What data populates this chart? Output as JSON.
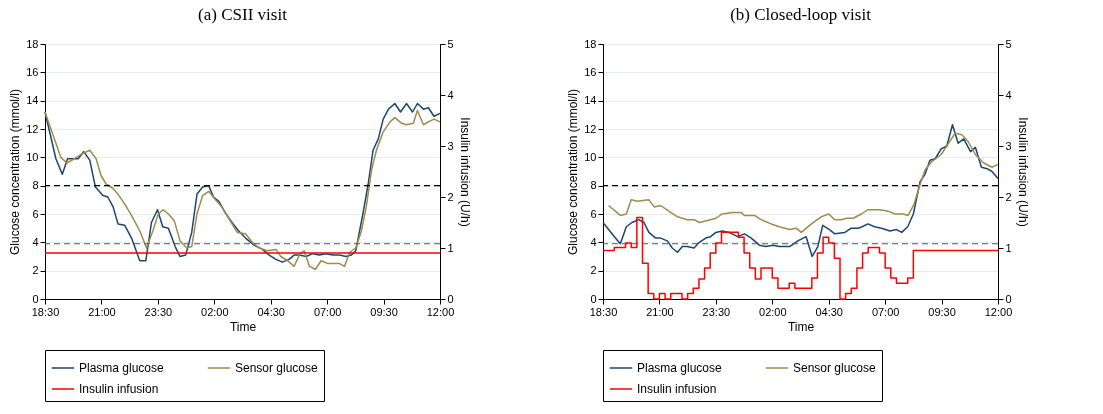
{
  "chart_data": [
    {
      "type": "line",
      "title": "(a) CSII visit",
      "xlabel": "Time",
      "ylabel": "Glucose concentration (mmol/l)",
      "y2label": "Insulin infusion (U/h)",
      "xlim": [
        "--01-01T18:30",
        "--01-02T12:00"
      ],
      "xticks": [
        {
          "value": "--01-01T18:30",
          "label": "18:30"
        },
        {
          "value": "--01-01T21:00",
          "label": "21:00"
        },
        {
          "value": "--01-01T23:30",
          "label": "23:30"
        },
        {
          "value": "--01-02T02:00",
          "label": "02:00"
        },
        {
          "value": "--01-02T04:30",
          "label": "04:30"
        },
        {
          "value": "--01-02T07:00",
          "label": "07:00"
        },
        {
          "value": "--01-02T09:30",
          "label": "09:30"
        },
        {
          "value": "--01-02T12:00",
          "label": "12:00"
        }
      ],
      "ylim": [
        0,
        18
      ],
      "yticks": [
        0,
        2,
        4,
        6,
        8,
        10,
        12,
        14,
        16,
        18
      ],
      "y2lim": [
        0,
        5
      ],
      "y2ticks": [
        0,
        1,
        2,
        3,
        4,
        5
      ],
      "grid": "y",
      "legend": "bottom",
      "ref_lines": [
        {
          "axis": "y",
          "value": 8,
          "color": "#000000",
          "line_style": "dashed"
        },
        {
          "axis": "y",
          "value": 3.9,
          "color": "#555555",
          "line_style": "dashed"
        }
      ],
      "series": [
        {
          "name": "Plasma glucose",
          "color": "#1a476f",
          "x": [
            "--01-01T18:30",
            "--01-01T18:59",
            "--01-01T19:16",
            "--01-01T19:30",
            "--01-01T19:58",
            "--01-01T20:13",
            "--01-01T20:29",
            "--01-01T20:44",
            "--01-01T21:04",
            "--01-01T21:17",
            "--01-01T21:31",
            "--01-01T21:44",
            "--01-01T22:02",
            "--01-01T22:20",
            "--01-01T22:42",
            "--01-01T22:58",
            "--01-01T23:13",
            "--01-01T23:29",
            "--01-01T23:43",
            "--01-01T23:58",
            "--01-02T00:16",
            "--01-02T00:29",
            "--01-02T00:44",
            "--01-02T01:00",
            "--01-02T01:14",
            "--01-02T01:29",
            "--01-02T01:45",
            "--01-02T01:58",
            "--01-02T02:12",
            "--01-02T02:29",
            "--01-02T02:47",
            "--01-02T03:05",
            "--01-02T03:23",
            "--01-02T03:46",
            "--01-02T04:08",
            "--01-02T04:26",
            "--01-02T04:44",
            "--01-02T05:01",
            "--01-02T05:19",
            "--01-02T05:32",
            "--01-02T05:46",
            "--01-02T06:04",
            "--01-02T06:22",
            "--01-02T06:39",
            "--01-02T06:57",
            "--01-02T07:15",
            "--01-02T07:33",
            "--01-02T07:50",
            "--01-02T08:04",
            "--01-02T08:16",
            "--01-02T08:35",
            "--01-02T08:49",
            "--01-02T09:02",
            "--01-02T09:16",
            "--01-02T09:29",
            "--01-02T09:43",
            "--01-02T10:00",
            "--01-02T10:15",
            "--01-02T10:31",
            "--01-02T10:47",
            "--01-02T11:00",
            "--01-02T11:16",
            "--01-02T11:29",
            "--01-02T11:44",
            "--01-02T12:00"
          ],
          "values": [
            13.2,
            9.9,
            8.8,
            9.9,
            9.9,
            10.4,
            9.8,
            7.9,
            7.3,
            7.2,
            6.5,
            5.3,
            5.2,
            4.3,
            2.7,
            2.7,
            5.4,
            6.3,
            5.1,
            5.0,
            3.7,
            3.0,
            3.1,
            4.7,
            7.4,
            7.9,
            8.0,
            7.2,
            6.9,
            6.1,
            5.4,
            4.8,
            4.3,
            3.8,
            3.5,
            3.1,
            2.8,
            2.6,
            2.8,
            3.1,
            3.1,
            3.0,
            3.2,
            3.1,
            3.2,
            3.1,
            3.1,
            3.0,
            3.1,
            3.4,
            6.0,
            8.1,
            10.5,
            11.3,
            12.7,
            13.4,
            13.8,
            13.2,
            13.8,
            13.2,
            13.8,
            13.4,
            13.5,
            12.9,
            13.1
          ]
        },
        {
          "name": "Sensor glucose",
          "color": "#a08a4c",
          "x": [
            "--01-01T18:30",
            "--01-01T18:55",
            "--01-01T19:12",
            "--01-01T19:28",
            "--01-01T19:48",
            "--01-01T20:05",
            "--01-01T20:29",
            "--01-01T20:46",
            "--01-01T20:59",
            "--01-01T21:13",
            "--01-01T21:31",
            "--01-01T21:44",
            "--01-01T22:02",
            "--01-01T22:20",
            "--01-01T22:42",
            "--01-01T23:00",
            "--01-01T23:18",
            "--01-01T23:31",
            "--01-01T23:44",
            "--01-01T23:58",
            "--01-02T00:14",
            "--01-02T00:29",
            "--01-02T00:47",
            "--01-02T01:00",
            "--01-02T01:14",
            "--01-02T01:29",
            "--01-02T01:45",
            "--01-02T02:03",
            "--01-02T02:20",
            "--01-02T02:38",
            "--01-02T03:01",
            "--01-02T03:23",
            "--01-02T03:41",
            "--01-02T03:59",
            "--01-02T04:21",
            "--01-02T04:44",
            "--01-02T04:57",
            "--01-02T05:15",
            "--01-02T05:32",
            "--01-02T05:48",
            "--01-02T05:59",
            "--01-02T06:13",
            "--01-02T06:29",
            "--01-02T06:44",
            "--01-02T07:02",
            "--01-02T07:20",
            "--01-02T07:33",
            "--01-02T07:46",
            "--01-02T08:00",
            "--01-02T08:16",
            "--01-02T08:31",
            "--01-02T08:44",
            "--01-02T08:58",
            "--01-02T09:11",
            "--01-02T09:29",
            "--01-02T09:47",
            "--01-02T10:00",
            "--01-02T10:18",
            "--01-02T10:31",
            "--01-02T10:49",
            "--01-02T11:00",
            "--01-02T11:16",
            "--01-02T11:29",
            "--01-02T11:44",
            "--01-02T12:00"
          ],
          "values": [
            13.2,
            11.3,
            10.0,
            9.6,
            9.9,
            10.2,
            10.5,
            9.9,
            8.7,
            8.1,
            7.8,
            7.4,
            6.7,
            5.9,
            4.8,
            3.6,
            4.9,
            6.0,
            6.3,
            6.0,
            5.5,
            4.1,
            3.6,
            3.7,
            6.0,
            7.3,
            7.6,
            7.0,
            6.5,
            5.7,
            4.7,
            4.6,
            4.0,
            3.6,
            3.4,
            3.5,
            3.0,
            2.7,
            2.3,
            3.2,
            3.4,
            2.3,
            2.1,
            2.7,
            2.5,
            2.5,
            2.5,
            2.3,
            3.3,
            3.6,
            4.8,
            6.5,
            9.1,
            10.5,
            11.8,
            12.5,
            12.8,
            12.4,
            12.3,
            12.4,
            13.3,
            12.3,
            12.5,
            12.7,
            12.5
          ]
        },
        {
          "name": "Insulin infusion",
          "color": "#ff0000",
          "type": "step",
          "axis": "y2",
          "x": [
            "--01-01T18:30",
            "--01-02T12:00"
          ],
          "values": [
            0.9,
            0.9
          ]
        }
      ]
    },
    {
      "type": "line",
      "title": "(b) Closed-loop visit",
      "xlabel": "Time",
      "ylabel": "Glucose concentration (mmol/l)",
      "y2label": "Insulin infusion (U/h)",
      "xlim": [
        "--01-01T18:30",
        "--01-02T12:00"
      ],
      "xticks": [
        {
          "value": "--01-01T18:30",
          "label": "18:30"
        },
        {
          "value": "--01-01T21:00",
          "label": "21:00"
        },
        {
          "value": "--01-01T23:30",
          "label": "23:30"
        },
        {
          "value": "--01-02T02:00",
          "label": "02:00"
        },
        {
          "value": "--01-02T04:30",
          "label": "04:30"
        },
        {
          "value": "--01-02T07:00",
          "label": "07:00"
        },
        {
          "value": "--01-02T09:30",
          "label": "09:30"
        },
        {
          "value": "--01-02T12:00",
          "label": "12:00"
        }
      ],
      "ylim": [
        0,
        18
      ],
      "yticks": [
        0,
        2,
        4,
        6,
        8,
        10,
        12,
        14,
        16,
        18
      ],
      "y2lim": [
        0,
        5
      ],
      "y2ticks": [
        0,
        1,
        2,
        3,
        4,
        5
      ],
      "grid": "y",
      "legend": "bottom",
      "ref_lines": [
        {
          "axis": "y",
          "value": 8,
          "color": "#000000",
          "line_style": "dashed"
        },
        {
          "axis": "y",
          "value": 3.9,
          "color": "#555555",
          "line_style": "dashed"
        }
      ],
      "series": [
        {
          "name": "Plasma glucose",
          "color": "#1a476f",
          "x": [
            "--01-01T18:30",
            "--01-01T19:03",
            "--01-01T19:16",
            "--01-01T19:32",
            "--01-01T19:47",
            "--01-01T20:05",
            "--01-01T20:19",
            "--01-01T20:32",
            "--01-01T20:50",
            "--01-01T21:03",
            "--01-01T21:21",
            "--01-01T21:34",
            "--01-01T21:48",
            "--01-01T22:01",
            "--01-01T22:14",
            "--01-01T22:32",
            "--01-01T22:46",
            "--01-01T23:03",
            "--01-01T23:16",
            "--01-01T23:30",
            "--01-01T23:47",
            "--01-02T00:05",
            "--01-02T00:28",
            "--01-02T00:46",
            "--01-02T01:04",
            "--01-02T01:26",
            "--01-02T01:43",
            "--01-02T02:01",
            "--01-02T02:19",
            "--01-02T02:46",
            "--01-02T03:08",
            "--01-02T03:30",
            "--01-02T03:46",
            "--01-02T04:01",
            "--01-02T04:14",
            "--01-02T04:32",
            "--01-02T04:46",
            "--01-02T05:13",
            "--01-02T05:30",
            "--01-02T05:48",
            "--01-02T05:59",
            "--01-02T06:14",
            "--01-02T06:32",
            "--01-02T06:50",
            "--01-02T07:13",
            "--01-02T07:30",
            "--01-02T07:44",
            "--01-02T08:00",
            "--01-02T08:15",
            "--01-02T08:33",
            "--01-02T08:46",
            "--01-02T08:59",
            "--01-02T09:13",
            "--01-02T09:29",
            "--01-02T09:44",
            "--01-02T09:59",
            "--01-02T10:14",
            "--01-02T10:29",
            "--01-02T10:47",
            "--01-02T11:00",
            "--01-02T11:16",
            "--01-02T11:31",
            "--01-02T11:44",
            "--01-02T12:00"
          ],
          "values": [
            5.4,
            4.3,
            3.9,
            5.1,
            5.4,
            5.6,
            5.4,
            4.7,
            4.3,
            4.3,
            4.1,
            3.6,
            3.3,
            3.7,
            3.7,
            3.6,
            4.0,
            4.3,
            4.4,
            4.7,
            4.8,
            4.7,
            4.4,
            4.6,
            4.3,
            3.8,
            3.7,
            3.8,
            3.7,
            3.7,
            4.1,
            4.4,
            3.0,
            3.7,
            5.2,
            4.9,
            4.6,
            4.7,
            5.0,
            5.0,
            5.1,
            5.3,
            5.1,
            5.0,
            4.8,
            4.9,
            4.7,
            5.1,
            6.0,
            8.3,
            8.8,
            9.8,
            9.9,
            10.6,
            10.8,
            12.3,
            11.0,
            11.3,
            10.4,
            10.7,
            9.3,
            9.2,
            9.0,
            8.5
          ]
        },
        {
          "name": "Sensor glucose",
          "color": "#a08a4c",
          "x": [
            "--01-01T18:45",
            "--01-01T19:16",
            "--01-01T19:32",
            "--01-01T19:45",
            "--01-01T20:01",
            "--01-01T20:32",
            "--01-01T20:46",
            "--01-01T21:03",
            "--01-01T21:25",
            "--01-01T21:48",
            "--01-01T22:14",
            "--01-01T22:32",
            "--01-01T22:46",
            "--01-01T23:03",
            "--01-01T23:30",
            "--01-01T23:47",
            "--01-02T00:14",
            "--01-02T00:37",
            "--01-02T00:46",
            "--01-02T01:13",
            "--01-02T01:30",
            "--01-02T01:57",
            "--01-02T02:19",
            "--01-02T02:46",
            "--01-02T03:04",
            "--01-02T03:17",
            "--01-02T03:44",
            "--01-02T04:10",
            "--01-02T04:30",
            "--01-02T04:46",
            "--01-02T05:04",
            "--01-02T05:17",
            "--01-02T05:35",
            "--01-02T05:57",
            "--01-02T06:14",
            "--01-02T06:46",
            "--01-02T07:08",
            "--01-02T07:26",
            "--01-02T07:48",
            "--01-02T08:01",
            "--01-02T08:17",
            "--01-02T08:33",
            "--01-02T08:46",
            "--01-02T09:04",
            "--01-02T09:29",
            "--01-02T09:49",
            "--01-02T10:06",
            "--01-02T10:24",
            "--01-02T10:41",
            "--01-02T11:00",
            "--01-02T11:22",
            "--01-02T11:44",
            "--01-02T12:00"
          ],
          "values": [
            6.6,
            5.9,
            6.0,
            7.0,
            6.9,
            7.0,
            6.5,
            6.6,
            6.2,
            5.8,
            5.6,
            5.6,
            5.4,
            5.5,
            5.7,
            6.0,
            6.1,
            6.1,
            5.9,
            5.9,
            5.6,
            5.3,
            5.1,
            4.9,
            5.0,
            4.7,
            5.3,
            5.8,
            6.0,
            5.6,
            5.6,
            5.7,
            5.7,
            6.0,
            6.3,
            6.3,
            6.2,
            6.0,
            6.0,
            5.9,
            6.7,
            8.1,
            9.1,
            9.7,
            10.2,
            11.0,
            11.7,
            11.6,
            11.1,
            10.2,
            9.6,
            9.3,
            9.5
          ]
        },
        {
          "name": "Insulin infusion",
          "color": "#ff0000",
          "type": "step",
          "axis": "y2",
          "x": [
            "--01-01T18:30",
            "--01-01T19:00",
            "--01-01T19:30",
            "--01-01T19:45",
            "--01-01T20:00",
            "--01-01T20:15",
            "--01-01T20:30",
            "--01-01T20:45",
            "--01-01T21:00",
            "--01-01T21:15",
            "--01-01T21:30",
            "--01-01T22:00",
            "--01-01T22:15",
            "--01-01T22:30",
            "--01-01T22:45",
            "--01-01T23:00",
            "--01-01T23:15",
            "--01-01T23:30",
            "--01-01T23:45",
            "--01-02T00:30",
            "--01-02T00:45",
            "--01-02T01:00",
            "--01-02T01:15",
            "--01-02T01:30",
            "--01-02T02:00",
            "--01-02T02:15",
            "--01-02T02:45",
            "--01-02T03:00",
            "--01-02T03:45",
            "--01-02T04:00",
            "--01-02T04:15",
            "--01-02T04:30",
            "--01-02T04:45",
            "--01-02T05:00",
            "--01-02T05:15",
            "--01-02T05:30",
            "--01-02T05:45",
            "--01-02T06:00",
            "--01-02T06:15",
            "--01-02T06:45",
            "--01-02T07:00",
            "--01-02T07:15",
            "--01-02T07:30",
            "--01-02T08:00",
            "--01-02T08:15",
            "--01-02T12:00"
          ],
          "values": [
            0.95,
            1.01,
            1.1,
            1.01,
            1.6,
            0.7,
            0.11,
            0,
            0.11,
            0,
            0.11,
            0,
            0.11,
            0.21,
            0.39,
            0.61,
            0.9,
            1.1,
            1.31,
            1.21,
            0.9,
            0.61,
            0.39,
            0.61,
            0.41,
            0.21,
            0.31,
            0.21,
            0.41,
            0.9,
            1.21,
            1.1,
            0.8,
            0,
            0.11,
            0.21,
            0.61,
            0.9,
            1.01,
            0.9,
            0.61,
            0.41,
            0.31,
            0.41,
            0.95,
            0.95
          ]
        }
      ]
    }
  ]
}
